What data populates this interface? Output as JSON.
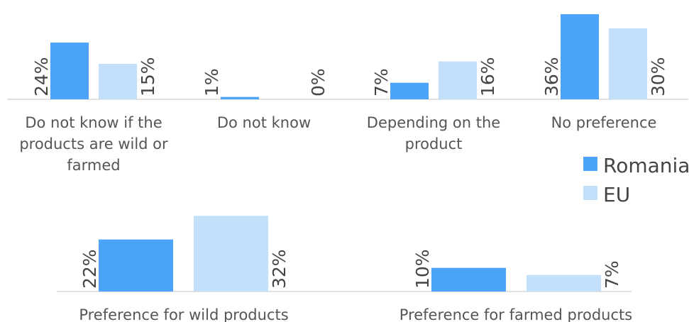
{
  "chart_data": {
    "type": "bar",
    "categories": [
      "Do not know if the products are wild or farmed",
      "Do not know",
      "Depending on the product",
      "No preference",
      "Preference for wild products",
      "Preference for farmed products"
    ],
    "category_lines": [
      [
        "Do not know if the",
        "products are wild or",
        "farmed"
      ],
      [
        "Do not know"
      ],
      [
        "Depending on the",
        "product"
      ],
      [
        "No preference"
      ],
      [
        "Preference for wild products"
      ],
      [
        "Preference for farmed products"
      ]
    ],
    "series": [
      {
        "name": "Romania",
        "color": "#4ca3fa",
        "values": [
          24,
          1,
          7,
          36,
          22,
          10
        ],
        "labels": [
          "24%",
          "1%",
          "7%",
          "36%",
          "22%",
          "10%"
        ]
      },
      {
        "name": "EU",
        "color": "#c3e0fb",
        "values": [
          15,
          0,
          16,
          30,
          32,
          7
        ],
        "labels": [
          "15%",
          "0%",
          "16%",
          "30%",
          "32%",
          "7%"
        ]
      }
    ],
    "unit": "%",
    "legend": {
      "position": "right"
    },
    "grid": false
  }
}
